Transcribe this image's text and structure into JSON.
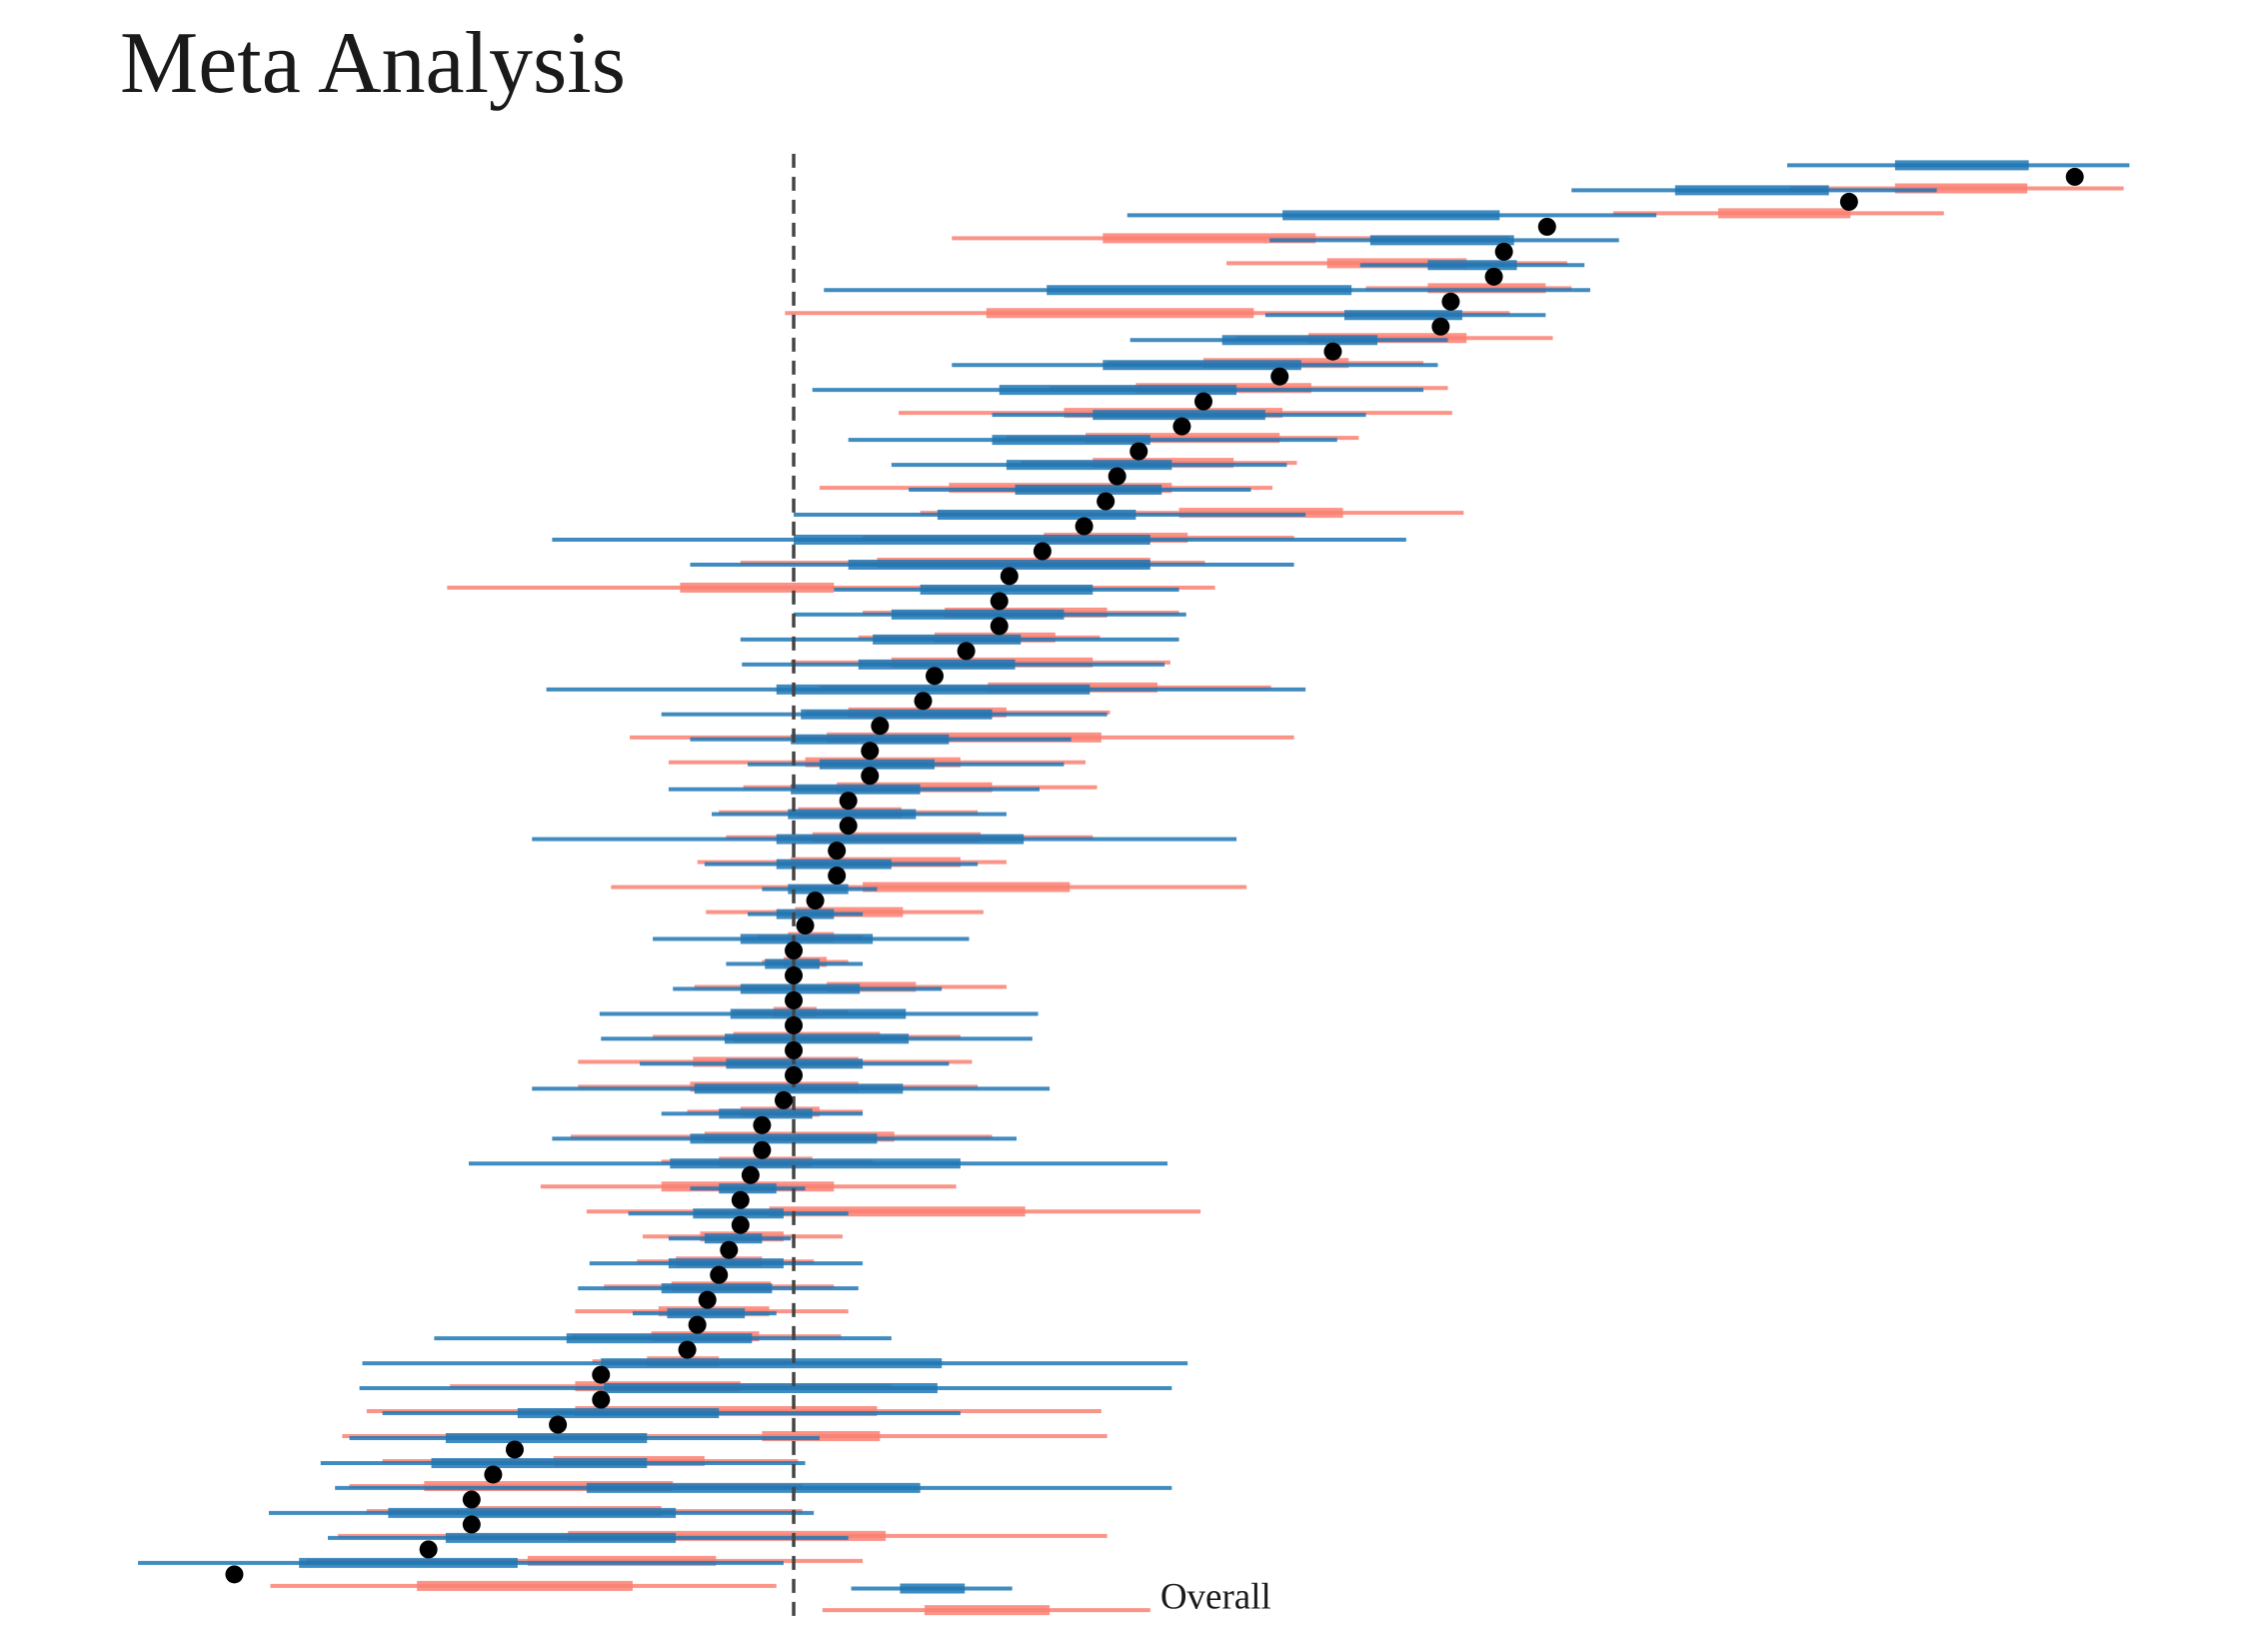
{
  "chart_data": {
    "type": "forest",
    "title": "Meta Analysis",
    "xlim": [
      0,
      1560
    ],
    "ref_line": 552,
    "estimates": [
      1443,
      1286,
      1076,
      1046,
      1039,
      1009,
      1002,
      927,
      890,
      837,
      822,
      792,
      777,
      769,
      754,
      725,
      702,
      695,
      695,
      672,
      650,
      642,
      612,
      605,
      605,
      590,
      590,
      582,
      582,
      567,
      560,
      552,
      552,
      552,
      552,
      552,
      552,
      545,
      530,
      530,
      522,
      515,
      515,
      507,
      500,
      492,
      485,
      478,
      418,
      418,
      388,
      358,
      343,
      328,
      328,
      298,
      163
    ],
    "series": [
      {
        "color": "#1f77b4",
        "intervals": [
          [
            1243,
            1318,
            1411,
            1481
          ],
          [
            1093,
            1165,
            1272,
            1347
          ],
          [
            784,
            892,
            1043,
            1152
          ],
          [
            883,
            953,
            1053,
            1126
          ],
          [
            946,
            993,
            1055,
            1102
          ],
          [
            573,
            728,
            940,
            1106
          ],
          [
            880,
            935,
            1017,
            1075
          ],
          [
            786,
            850,
            958,
            1007
          ],
          [
            662,
            767,
            905,
            1000
          ],
          [
            565,
            695,
            860,
            990
          ],
          [
            690,
            760,
            880,
            950
          ],
          [
            590,
            690,
            800,
            930
          ],
          [
            620,
            700,
            815,
            895
          ],
          [
            632,
            706,
            808,
            870
          ],
          [
            552,
            652,
            790,
            908
          ],
          [
            384,
            552,
            800,
            978
          ],
          [
            480,
            590,
            800,
            900
          ],
          [
            580,
            640,
            760,
            820
          ],
          [
            552,
            620,
            740,
            825
          ],
          [
            515,
            607,
            710,
            820
          ],
          [
            516,
            597,
            706,
            810
          ],
          [
            380,
            540,
            758,
            908
          ],
          [
            460,
            557,
            690,
            770
          ],
          [
            480,
            550,
            660,
            745
          ],
          [
            520,
            570,
            650,
            740
          ],
          [
            465,
            550,
            640,
            723
          ],
          [
            495,
            548,
            637,
            700
          ],
          [
            370,
            540,
            712,
            860
          ],
          [
            490,
            540,
            620,
            680
          ],
          [
            530,
            548,
            590,
            610
          ],
          [
            520,
            540,
            580,
            600
          ],
          [
            454,
            515,
            607,
            674
          ],
          [
            505,
            532,
            570,
            600
          ],
          [
            468,
            515,
            598,
            655
          ],
          [
            417,
            508,
            630,
            722
          ],
          [
            418,
            504,
            632,
            718
          ],
          [
            445,
            505,
            600,
            660
          ],
          [
            370,
            483,
            628,
            730
          ],
          [
            460,
            500,
            565,
            600
          ],
          [
            384,
            480,
            610,
            707
          ],
          [
            326,
            466,
            668,
            812
          ],
          [
            480,
            500,
            540,
            560
          ],
          [
            437,
            482,
            545,
            590
          ],
          [
            465,
            490,
            530,
            550
          ],
          [
            410,
            465,
            545,
            600
          ],
          [
            402,
            460,
            537,
            597
          ],
          [
            440,
            464,
            518,
            540
          ],
          [
            302,
            394,
            523,
            620
          ],
          [
            252,
            418,
            655,
            826
          ],
          [
            250,
            420,
            652,
            815
          ],
          [
            266,
            360,
            500,
            668
          ],
          [
            243,
            310,
            450,
            570
          ],
          [
            223,
            300,
            450,
            560
          ],
          [
            233,
            408,
            640,
            815
          ],
          [
            187,
            270,
            470,
            566
          ],
          [
            228,
            310,
            470,
            590
          ],
          [
            96,
            208,
            360,
            545
          ]
        ]
      },
      {
        "color": "#fa8072",
        "intervals": [
          [
            1245,
            1318,
            1410,
            1477
          ],
          [
            1122,
            1195,
            1287,
            1352
          ],
          [
            662,
            767,
            915,
            1050
          ],
          [
            853,
            923,
            1020,
            1090
          ],
          [
            950,
            993,
            1075,
            1093
          ],
          [
            546,
            686,
            872,
            1050
          ],
          [
            860,
            910,
            1020,
            1080
          ],
          [
            770,
            837,
            938,
            990
          ],
          [
            730,
            790,
            912,
            1007
          ],
          [
            625,
            740,
            892,
            1010
          ],
          [
            700,
            755,
            890,
            945
          ],
          [
            710,
            760,
            858,
            902
          ],
          [
            570,
            660,
            815,
            885
          ],
          [
            640,
            820,
            934,
            1018
          ],
          [
            600,
            726,
            826,
            900
          ],
          [
            515,
            610,
            800,
            838
          ],
          [
            311,
            473,
            580,
            845
          ],
          [
            600,
            657,
            770,
            820
          ],
          [
            597,
            650,
            734,
            765
          ],
          [
            550,
            620,
            760,
            814
          ],
          [
            570,
            687,
            805,
            884
          ],
          [
            560,
            590,
            700,
            772
          ],
          [
            438,
            575,
            766,
            900
          ],
          [
            465,
            560,
            668,
            755
          ],
          [
            517,
            582,
            690,
            763
          ],
          [
            500,
            555,
            627,
            680
          ],
          [
            505,
            565,
            682,
            760
          ],
          [
            485,
            550,
            668,
            700
          ],
          [
            425,
            600,
            744,
            867
          ],
          [
            491,
            553,
            628,
            684
          ],
          [
            527,
            548,
            580,
            600
          ],
          [
            530,
            545,
            575,
            590
          ],
          [
            483,
            575,
            637,
            700
          ],
          [
            510,
            538,
            568,
            590
          ],
          [
            454,
            510,
            612,
            668
          ],
          [
            402,
            482,
            597,
            676
          ],
          [
            402,
            480,
            597,
            680
          ],
          [
            478,
            515,
            570,
            600
          ],
          [
            397,
            490,
            622,
            690
          ],
          [
            460,
            500,
            565,
            607
          ],
          [
            376,
            460,
            580,
            665
          ],
          [
            408,
            535,
            713,
            835
          ],
          [
            447,
            487,
            545,
            586
          ],
          [
            443,
            470,
            530,
            566
          ],
          [
            420,
            467,
            536,
            580
          ],
          [
            400,
            458,
            535,
            590
          ],
          [
            398,
            453,
            528,
            585
          ],
          [
            412,
            450,
            500,
            550
          ],
          [
            313,
            400,
            515,
            620
          ],
          [
            255,
            400,
            610,
            766
          ],
          [
            238,
            530,
            612,
            770
          ],
          [
            266,
            385,
            490,
            555
          ],
          [
            243,
            295,
            468,
            558
          ],
          [
            255,
            327,
            460,
            558
          ],
          [
            235,
            395,
            616,
            770
          ],
          [
            213,
            367,
            498,
            600
          ],
          [
            188,
            290,
            440,
            540
          ]
        ]
      }
    ],
    "overall": {
      "label": "Overall",
      "intervals": [
        [
          592,
          626,
          671,
          704
        ],
        [
          572,
          643,
          730,
          800
        ]
      ]
    }
  }
}
